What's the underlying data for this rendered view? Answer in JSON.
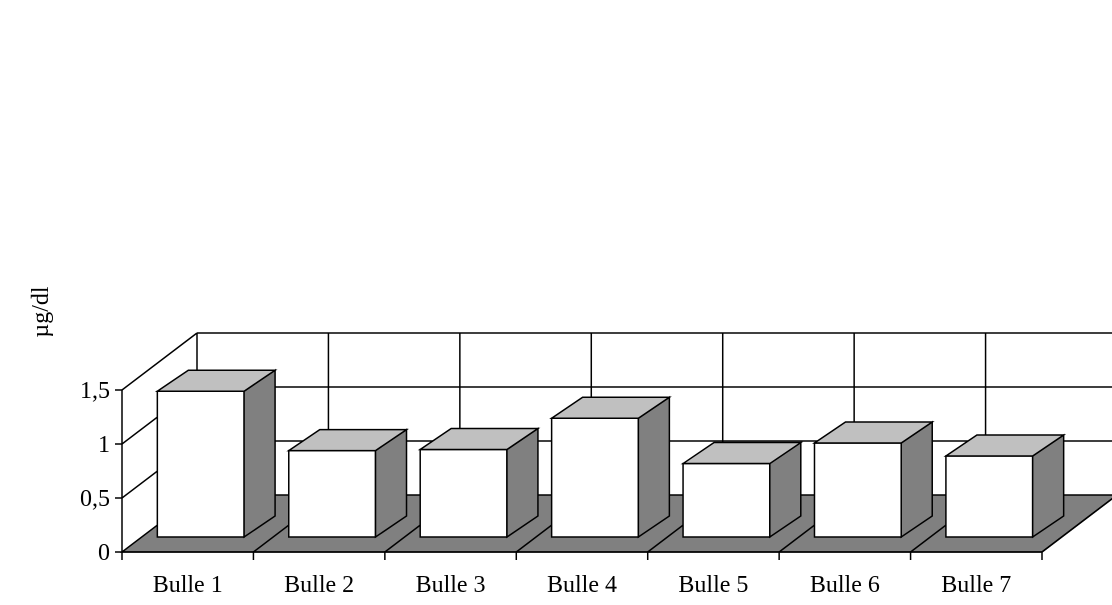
{
  "chart_data": {
    "type": "bar",
    "title": "",
    "xlabel": "",
    "ylabel": "µg/dl",
    "categories": [
      "Bulle 1",
      "Bulle 2",
      "Bulle 3",
      "Bulle 4",
      "Bulle 5",
      "Bulle 6",
      "Bulle 7"
    ],
    "values": [
      1.35,
      0.8,
      0.81,
      1.1,
      0.68,
      0.87,
      0.75
    ],
    "ylim": [
      0,
      1.5
    ],
    "yticks": [
      0,
      0.5,
      1,
      1.5
    ],
    "ytick_labels": [
      "0",
      "0,5",
      "1",
      "1,5"
    ],
    "grid": true,
    "legend": "none",
    "style": "3d-columns",
    "colors": {
      "bar_front": "#ffffff",
      "bar_top": "#c0c0c0",
      "bar_side": "#808080",
      "floor": "#808080",
      "grid": "#000000",
      "background": "#ffffff"
    }
  }
}
